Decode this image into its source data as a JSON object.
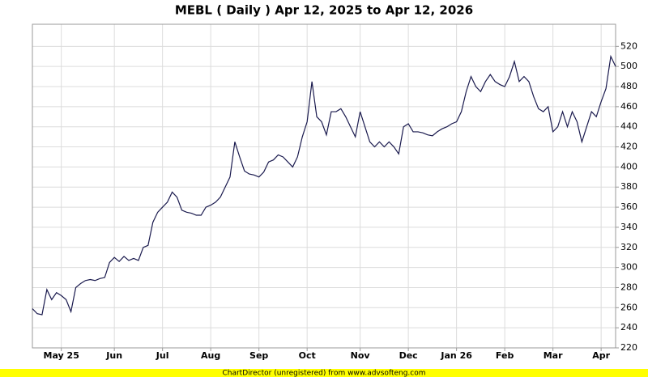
{
  "chart_data": {
    "type": "line",
    "title": "MEBL ( Daily ) Apr 12, 2025 to Apr 12, 2026",
    "categories": [
      null,
      null,
      null,
      null,
      null,
      null,
      "May 25",
      null,
      null,
      null,
      null,
      null,
      null,
      null,
      null,
      null,
      null,
      "Jun",
      null,
      null,
      null,
      null,
      null,
      null,
      null,
      null,
      null,
      "Jul",
      null,
      null,
      null,
      null,
      null,
      null,
      null,
      null,
      null,
      "Aug",
      null,
      null,
      null,
      null,
      null,
      null,
      null,
      null,
      null,
      "Sep",
      null,
      null,
      null,
      null,
      null,
      null,
      null,
      null,
      null,
      "Oct",
      null,
      null,
      null,
      null,
      null,
      null,
      null,
      null,
      null,
      null,
      "Nov",
      null,
      null,
      null,
      null,
      null,
      null,
      null,
      null,
      null,
      "Dec",
      null,
      null,
      null,
      null,
      null,
      null,
      null,
      null,
      null,
      "Jan 26",
      null,
      null,
      null,
      null,
      null,
      null,
      null,
      null,
      null,
      "Feb",
      null,
      null,
      null,
      null,
      null,
      null,
      null,
      null,
      null,
      "Mar",
      null,
      null,
      null,
      null,
      null,
      null,
      null,
      null,
      null,
      "Apr",
      null,
      null,
      null
    ],
    "series": [
      {
        "color": "#1a1a4e",
        "values": [
          259,
          254,
          253,
          278,
          268,
          275,
          272,
          268,
          256,
          280,
          284,
          287,
          288,
          287,
          289,
          290,
          305,
          310,
          306,
          311,
          307,
          309,
          307,
          320,
          322,
          345,
          355,
          360,
          365,
          375,
          370,
          357,
          355,
          354,
          352,
          352,
          360,
          362,
          365,
          370,
          380,
          390,
          425,
          410,
          396,
          393,
          392,
          390,
          395,
          405,
          407,
          412,
          410,
          405,
          400,
          410,
          430,
          445,
          485,
          450,
          445,
          432,
          455,
          455,
          458,
          450,
          440,
          430,
          455,
          440,
          425,
          420,
          425,
          420,
          425,
          420,
          413,
          440,
          443,
          435,
          435,
          434,
          432,
          431,
          435,
          438,
          440,
          443,
          445,
          455,
          475,
          490,
          480,
          475,
          485,
          492,
          485,
          482,
          480,
          490,
          505,
          485,
          490,
          485,
          470,
          458,
          455,
          460,
          435,
          440,
          455,
          440,
          455,
          445,
          425,
          440,
          455,
          450,
          465,
          478,
          510,
          500
        ]
      }
    ],
    "ylim": [
      220,
      542
    ],
    "yticks": [
      220,
      240,
      260,
      280,
      300,
      320,
      340,
      360,
      380,
      400,
      420,
      440,
      460,
      480,
      500,
      520
    ],
    "grid": true
  },
  "footer": "ChartDirector (unregistered) from www.advsofteng.com"
}
